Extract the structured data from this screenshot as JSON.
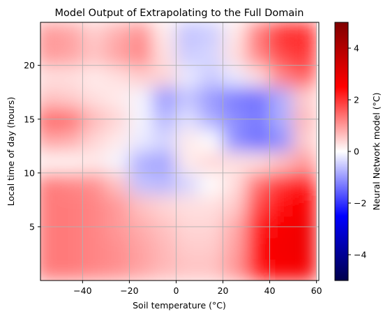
{
  "chart_data": {
    "type": "heatmap",
    "title": "Model Output of Extrapolating to the Full Domain",
    "xlabel": "Soil temperature (°C)",
    "ylabel": "Local time of day (hours)",
    "colorbar_label": "Neural Network model (°C)",
    "colormap": "seismic",
    "colormap_stops": [
      "#00004c",
      "#0000ff",
      "#ffffff",
      "#ff0000",
      "#7f0000"
    ],
    "xlim": [
      -58,
      61
    ],
    "ylim": [
      0,
      24
    ],
    "clim": [
      -5,
      5
    ],
    "x_ticks": [
      -40,
      -20,
      0,
      20,
      40,
      60
    ],
    "x_tick_labels": [
      "−40",
      "−20",
      "0",
      "20",
      "40",
      "60"
    ],
    "y_ticks": [
      5,
      10,
      15,
      20
    ],
    "y_tick_labels": [
      "5",
      "10",
      "15",
      "20"
    ],
    "colorbar_ticks": [
      -4,
      -2,
      0,
      2,
      4
    ],
    "colorbar_tick_labels": [
      "−4",
      "−2",
      "0",
      "2",
      "4"
    ],
    "grid": true,
    "x": [
      -55,
      -45,
      -35,
      -25,
      -15,
      -5,
      5,
      15,
      25,
      35,
      45,
      55
    ],
    "y": [
      1,
      3,
      5,
      7,
      9,
      11,
      13,
      15,
      17,
      19,
      21,
      23
    ],
    "z": [
      [
        1.3,
        1.3,
        1.2,
        1.1,
        0.9,
        0.7,
        0.6,
        0.6,
        1.0,
        2.3,
        2.6,
        2.7
      ],
      [
        1.3,
        1.3,
        1.2,
        1.1,
        0.9,
        0.7,
        0.5,
        0.5,
        0.9,
        2.4,
        2.7,
        2.8
      ],
      [
        1.3,
        1.3,
        1.2,
        1.0,
        0.8,
        0.6,
        0.4,
        0.4,
        0.8,
        2.2,
        2.6,
        2.8
      ],
      [
        1.3,
        1.3,
        1.2,
        1.0,
        0.6,
        0.4,
        0.3,
        0.3,
        0.5,
        1.8,
        2.4,
        2.6
      ],
      [
        1.3,
        1.2,
        1.1,
        0.6,
        -0.6,
        -0.7,
        -0.4,
        0.0,
        0.3,
        1.4,
        2.0,
        2.3
      ],
      [
        0.1,
        0.1,
        0.2,
        -0.1,
        -0.8,
        -0.9,
        0.2,
        0.4,
        0.3,
        0.3,
        0.6,
        1.0
      ],
      [
        0.9,
        0.8,
        0.4,
        0.2,
        -0.2,
        -0.4,
        0.2,
        0.0,
        -1.1,
        -1.4,
        -1.1,
        0.5
      ],
      [
        1.5,
        1.4,
        0.7,
        0.4,
        -0.1,
        -0.7,
        -0.3,
        -0.8,
        -1.1,
        -1.3,
        -0.8,
        0.7
      ],
      [
        0.6,
        0.5,
        0.3,
        0.2,
        -0.1,
        -1.0,
        -0.6,
        -1.0,
        -1.3,
        -1.4,
        -0.8,
        0.5
      ],
      [
        0.3,
        0.3,
        0.2,
        0.3,
        0.5,
        0.4,
        -0.2,
        -0.5,
        -0.2,
        0.3,
        1.2,
        1.6
      ],
      [
        1.0,
        0.9,
        0.6,
        0.9,
        1.2,
        0.3,
        -0.5,
        -0.4,
        0.3,
        1.2,
        1.8,
        2.0
      ],
      [
        1.0,
        0.9,
        0.5,
        0.8,
        1.1,
        0.2,
        -0.6,
        -0.5,
        0.2,
        1.3,
        2.0,
        2.1
      ]
    ]
  }
}
